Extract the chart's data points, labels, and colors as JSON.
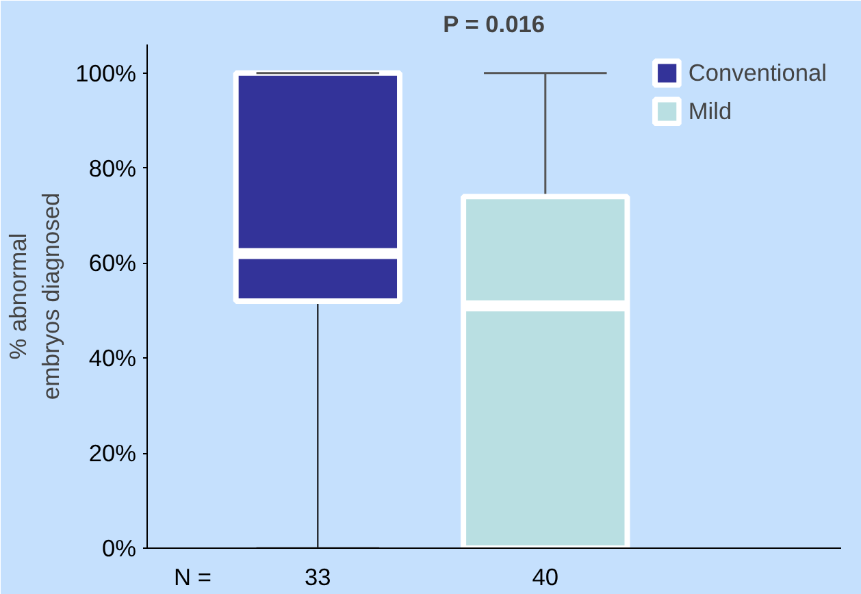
{
  "chart_data": {
    "type": "box",
    "title": "P = 0.016",
    "ylabel": "% abnormal\nembryos diagnosed",
    "categories": [
      "33",
      "40"
    ],
    "series": [
      {
        "name": "Conventional",
        "color": "#333399",
        "boxes": [
          {
            "low": 0,
            "q1": 52,
            "median": 62,
            "q3": 100,
            "high": 100
          },
          null
        ]
      },
      {
        "name": "Mild",
        "color": "#b9dfe2",
        "boxes": [
          null,
          {
            "low": 0,
            "q1": 0,
            "median": 51,
            "q3": 74,
            "high": 100
          }
        ]
      }
    ],
    "ylim": [
      0,
      106
    ],
    "yticks": [
      {
        "value": 0,
        "label": "0%"
      },
      {
        "value": 20,
        "label": "20%"
      },
      {
        "value": 40,
        "label": "40%"
      },
      {
        "value": 60,
        "label": "60%"
      },
      {
        "value": 80,
        "label": "80%"
      },
      {
        "value": 100,
        "label": "100%"
      }
    ],
    "annotations": [
      "N ="
    ],
    "legend": "top right"
  }
}
